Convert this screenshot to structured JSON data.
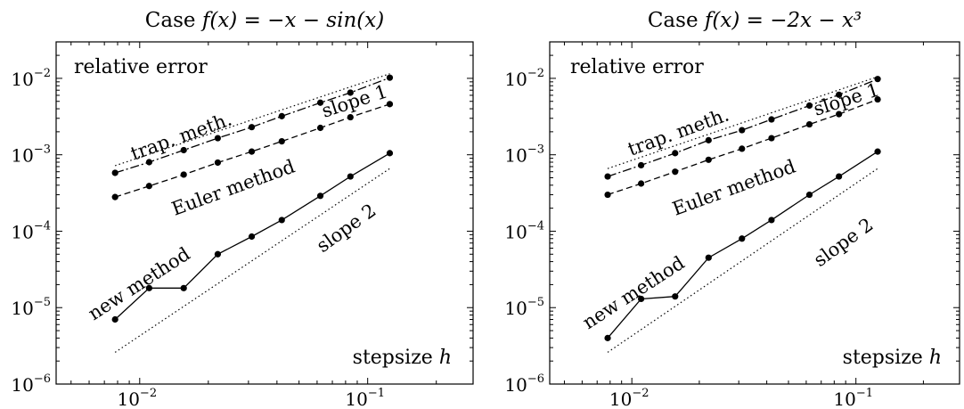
{
  "chart_data": [
    {
      "type": "line",
      "title_prefix": "Case ",
      "title_math": "f(x) = −x − sin(x)",
      "xscale": "log",
      "yscale": "log",
      "xlim": [
        0.0043,
        0.29
      ],
      "ylim": [
        1e-06,
        0.03
      ],
      "x_ticks": [
        {
          "value": 0.01,
          "base": "10",
          "exp": "−2"
        },
        {
          "value": 0.1,
          "base": "10",
          "exp": "−1"
        }
      ],
      "y_ticks": [
        {
          "value": 0.01,
          "base": "10",
          "exp": "−2"
        },
        {
          "value": 0.001,
          "base": "10",
          "exp": "−3"
        },
        {
          "value": 0.0001,
          "base": "10",
          "exp": "−4"
        },
        {
          "value": 1e-05,
          "base": "10",
          "exp": "−5"
        },
        {
          "value": 1e-06,
          "base": "10",
          "exp": "−6"
        }
      ],
      "ylabel": "relative error",
      "xlabel_text": "stepsize ",
      "xlabel_var": "h",
      "x": [
        0.0078,
        0.011,
        0.0156,
        0.022,
        0.031,
        0.042,
        0.062,
        0.084,
        0.125
      ],
      "series": [
        {
          "name": "trap. meth.",
          "style": "dashdot",
          "values": [
            0.00058,
            0.0008,
            0.00115,
            0.00165,
            0.0023,
            0.0032,
            0.0048,
            0.0065,
            0.0102
          ]
        },
        {
          "name": "Euler method",
          "style": "dashed",
          "values": [
            0.00028,
            0.00039,
            0.00055,
            0.00079,
            0.0011,
            0.0015,
            0.00225,
            0.0031,
            0.0046
          ]
        },
        {
          "name": "new method",
          "style": "solid",
          "values": [
            7e-06,
            1.8e-05,
            1.8e-05,
            5e-05,
            8.5e-05,
            0.00014,
            0.00029,
            0.00052,
            0.00105
          ]
        }
      ],
      "reference_lines": [
        {
          "name": "slope 1",
          "x": [
            0.0078,
            0.125
          ],
          "y": [
            0.00072,
            0.0115
          ]
        },
        {
          "name": "slope 2",
          "x": [
            0.0078,
            0.125
          ],
          "y": [
            2.6e-06,
            0.00066
          ]
        }
      ]
    },
    {
      "type": "line",
      "title_prefix": "Case ",
      "title_math": "f(x) = −2x − x³",
      "xscale": "log",
      "yscale": "log",
      "xlim": [
        0.0043,
        0.29
      ],
      "ylim": [
        1e-06,
        0.03
      ],
      "x_ticks": [
        {
          "value": 0.01,
          "base": "10",
          "exp": "−2"
        },
        {
          "value": 0.1,
          "base": "10",
          "exp": "−1"
        }
      ],
      "y_ticks": [
        {
          "value": 0.01,
          "base": "10",
          "exp": "−2"
        },
        {
          "value": 0.001,
          "base": "10",
          "exp": "−3"
        },
        {
          "value": 0.0001,
          "base": "10",
          "exp": "−4"
        },
        {
          "value": 1e-05,
          "base": "10",
          "exp": "−5"
        },
        {
          "value": 1e-06,
          "base": "10",
          "exp": "−6"
        }
      ],
      "ylabel": "relative error",
      "xlabel_text": "stepsize ",
      "xlabel_var": "h",
      "x": [
        0.0078,
        0.011,
        0.0156,
        0.022,
        0.031,
        0.042,
        0.062,
        0.084,
        0.125
      ],
      "series": [
        {
          "name": "trap. meth.",
          "style": "dashdot",
          "values": [
            0.00052,
            0.00073,
            0.00105,
            0.00155,
            0.0021,
            0.0029,
            0.0044,
            0.0061,
            0.0098
          ]
        },
        {
          "name": "Euler method",
          "style": "dashed",
          "values": [
            0.0003,
            0.00042,
            0.0006,
            0.00086,
            0.0012,
            0.00165,
            0.0025,
            0.0034,
            0.0053
          ]
        },
        {
          "name": "new method",
          "style": "solid",
          "values": [
            4e-06,
            1.3e-05,
            1.4e-05,
            4.5e-05,
            8e-05,
            0.00014,
            0.0003,
            0.00052,
            0.0011
          ]
        }
      ],
      "reference_lines": [
        {
          "name": "slope 1",
          "x": [
            0.0078,
            0.125
          ],
          "y": [
            0.00066,
            0.0105
          ]
        },
        {
          "name": "slope 2",
          "x": [
            0.0078,
            0.125
          ],
          "y": [
            2.6e-06,
            0.00066
          ]
        }
      ]
    }
  ]
}
